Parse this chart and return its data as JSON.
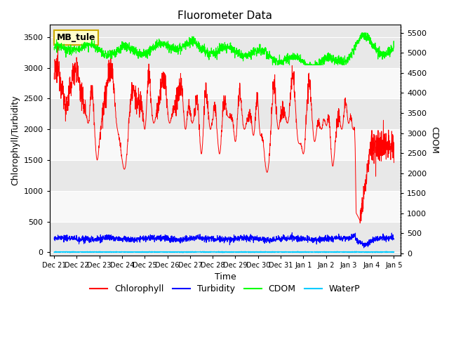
{
  "title": "Fluorometer Data",
  "xlabel": "Time",
  "ylabel_left": "Chlorophyll/Turbidity",
  "ylabel_right": "CDOM",
  "station_label": "MB_tule",
  "ylim_left": [
    -50,
    3700
  ],
  "ylim_right": [
    -50,
    5700
  ],
  "x_tick_labels": [
    "Dec 21",
    "Dec 22",
    "Dec 23",
    "Dec 24",
    "Dec 25",
    "Dec 26",
    "Dec 27",
    "Dec 28",
    "Dec 29",
    "Dec 30",
    "Dec 31",
    "Jan 1",
    "Jan 2",
    "Jan 3",
    "Jan 4",
    "Jan 5"
  ],
  "background_color": "#ffffff",
  "plot_bg_bands": [
    "#e8e8e8",
    "#f8f8f8"
  ],
  "grid_color": "#ffffff",
  "colors": {
    "chlorophyll": "#ff0000",
    "turbidity": "#0000ff",
    "cdom": "#00ff00",
    "waterp": "#00ccff"
  },
  "legend_labels": [
    "Chlorophyll",
    "Turbidity",
    "CDOM",
    "WaterP"
  ],
  "yticks_left": [
    0,
    500,
    1000,
    1500,
    2000,
    2500,
    3000,
    3500
  ],
  "yticks_right": [
    0,
    500,
    1000,
    1500,
    2000,
    2500,
    3000,
    3500,
    4000,
    4500,
    5000,
    5500
  ]
}
